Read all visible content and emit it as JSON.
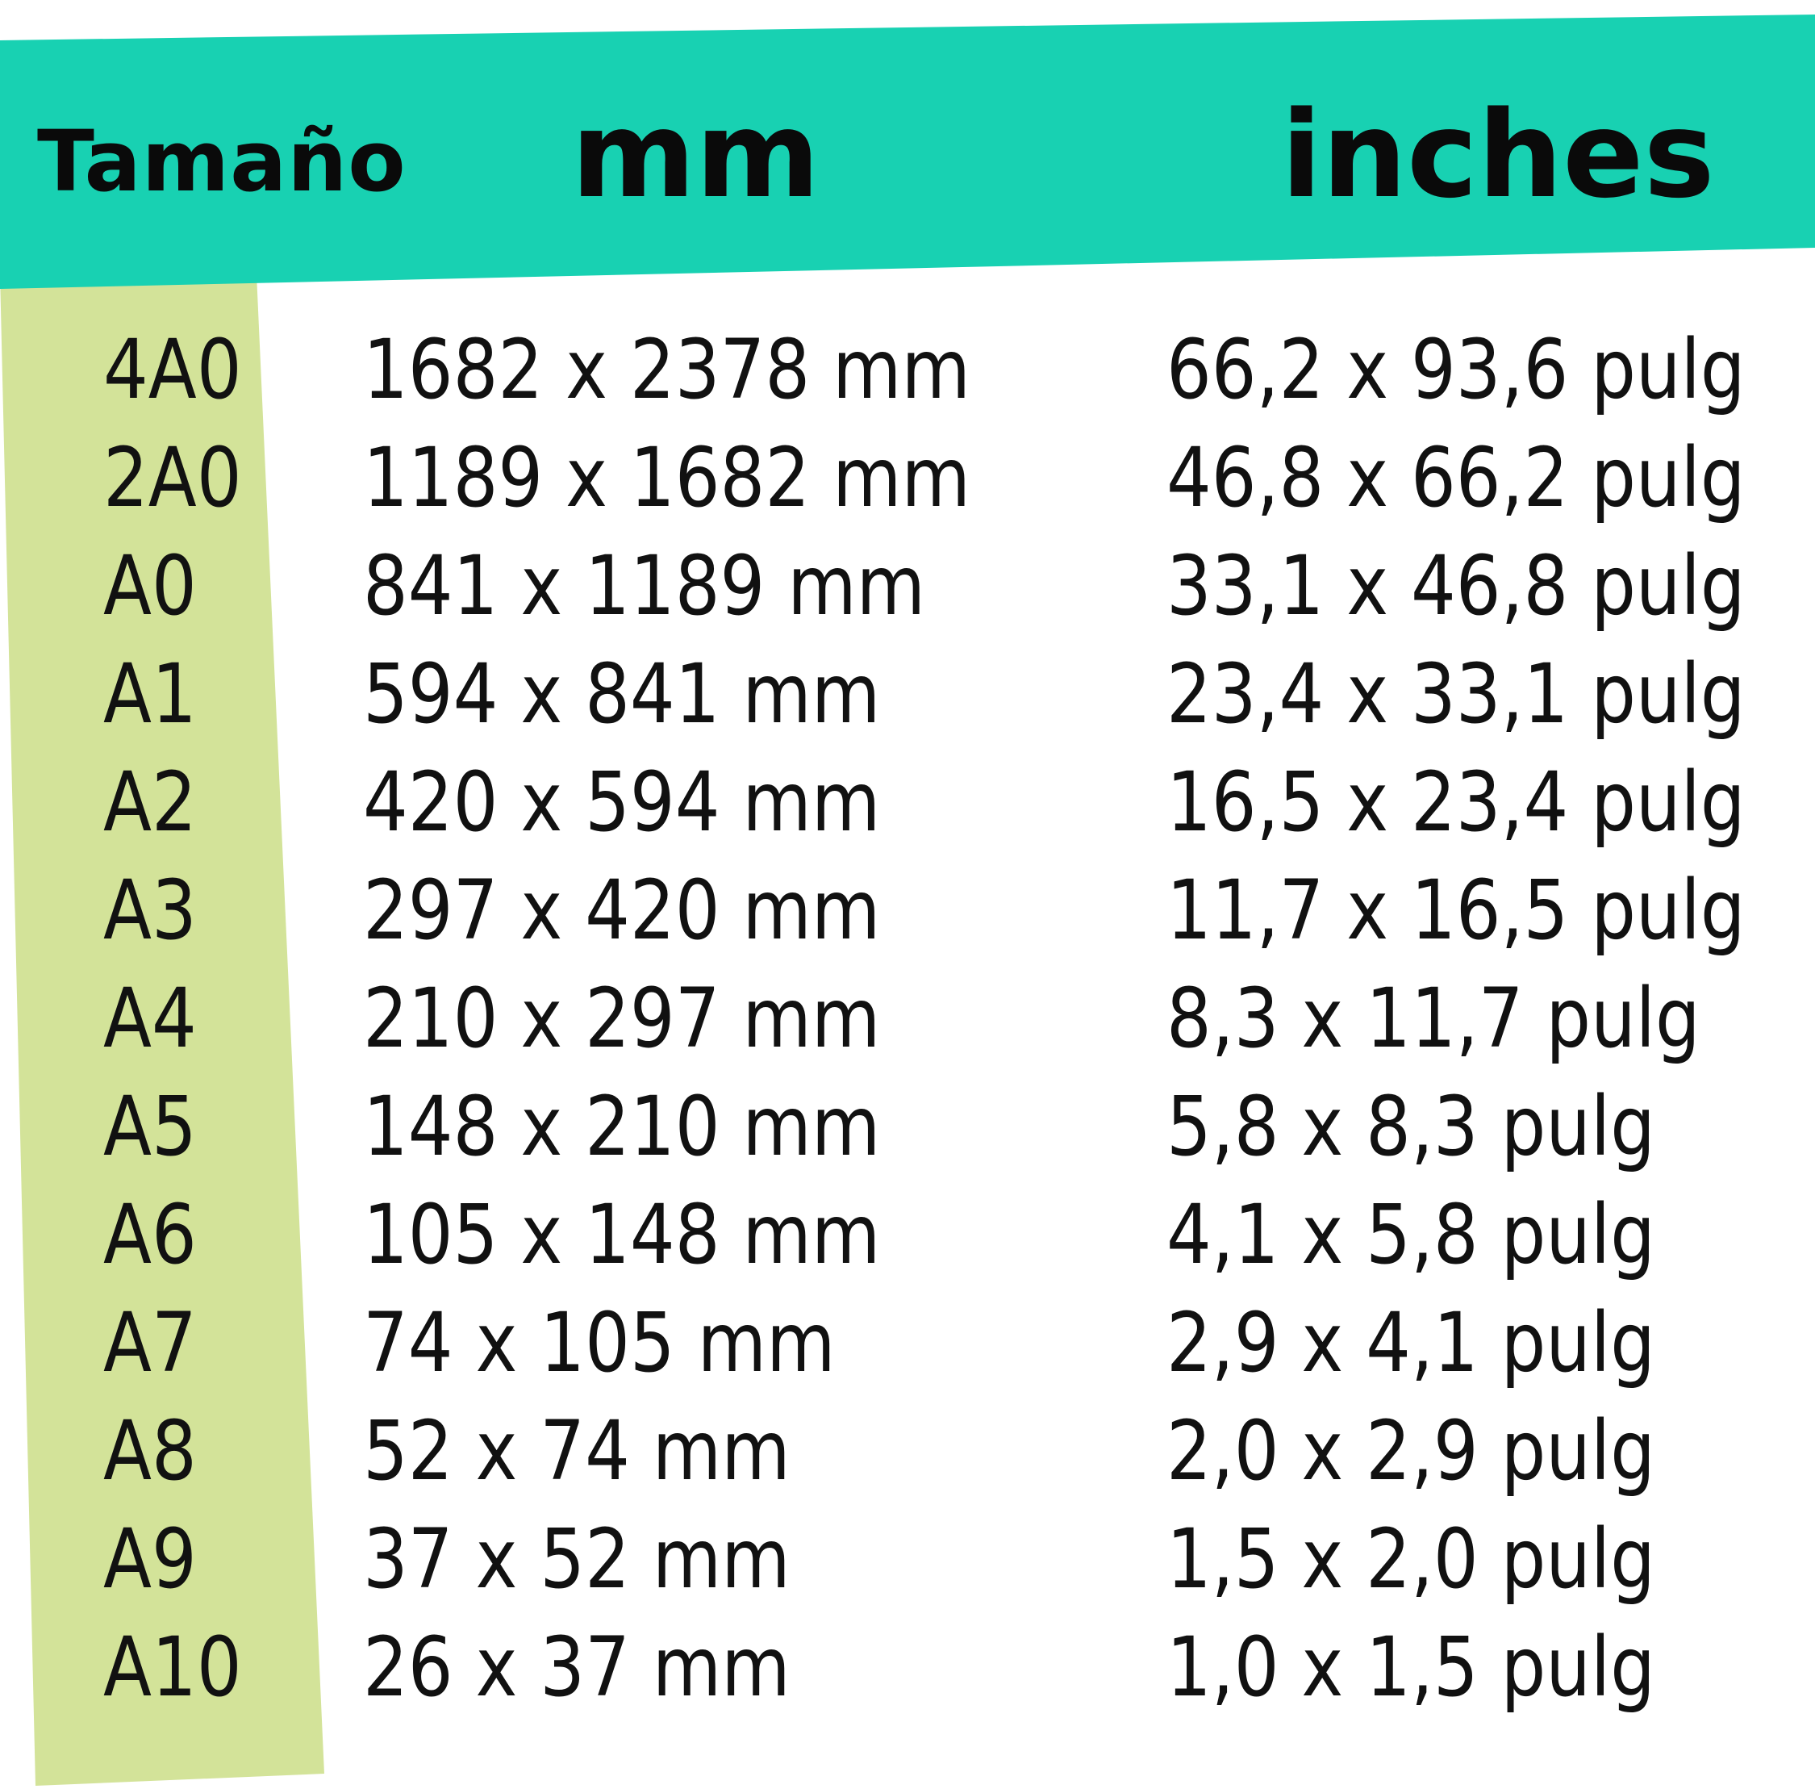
{
  "colors": {
    "header_bar": "#18d1b2",
    "size_column": "#d3e399",
    "text": "#111111"
  },
  "header": {
    "size": "Tamaño",
    "mm": "mm",
    "inches": "inches"
  },
  "rows": [
    {
      "size": "4A0",
      "mm": "1682 x 2378 mm",
      "inches": "66,2 x 93,6 pulg"
    },
    {
      "size": "2A0",
      "mm": "1189 x 1682 mm",
      "inches": "46,8 x 66,2 pulg"
    },
    {
      "size": "A0",
      "mm": "841 x 1189 mm",
      "inches": "33,1 x 46,8 pulg"
    },
    {
      "size": "A1",
      "mm": "594 x 841 mm",
      "inches": "23,4 x 33,1 pulg"
    },
    {
      "size": "A2",
      "mm": "420 x 594 mm",
      "inches": "16,5 x 23,4 pulg"
    },
    {
      "size": "A3",
      "mm": "297 x 420 mm",
      "inches": "11,7 x 16,5 pulg"
    },
    {
      "size": "A4",
      "mm": "210 x 297 mm",
      "inches": "8,3 x 11,7 pulg"
    },
    {
      "size": "A5",
      "mm": "148 x 210 mm",
      "inches": "5,8 x 8,3 pulg"
    },
    {
      "size": "A6",
      "mm": "105 x 148 mm",
      "inches": "4,1 x 5,8 pulg"
    },
    {
      "size": "A7",
      "mm": "74 x 105 mm",
      "inches": "2,9 x 4,1 pulg"
    },
    {
      "size": "A8",
      "mm": "52 x 74 mm",
      "inches": "2,0 x 2,9 pulg"
    },
    {
      "size": "A9",
      "mm": "37 x 52 mm",
      "inches": "1,5 x 2,0 pulg"
    },
    {
      "size": "A10",
      "mm": "26 x 37 mm",
      "inches": "1,0 x 1,5 pulg"
    }
  ]
}
